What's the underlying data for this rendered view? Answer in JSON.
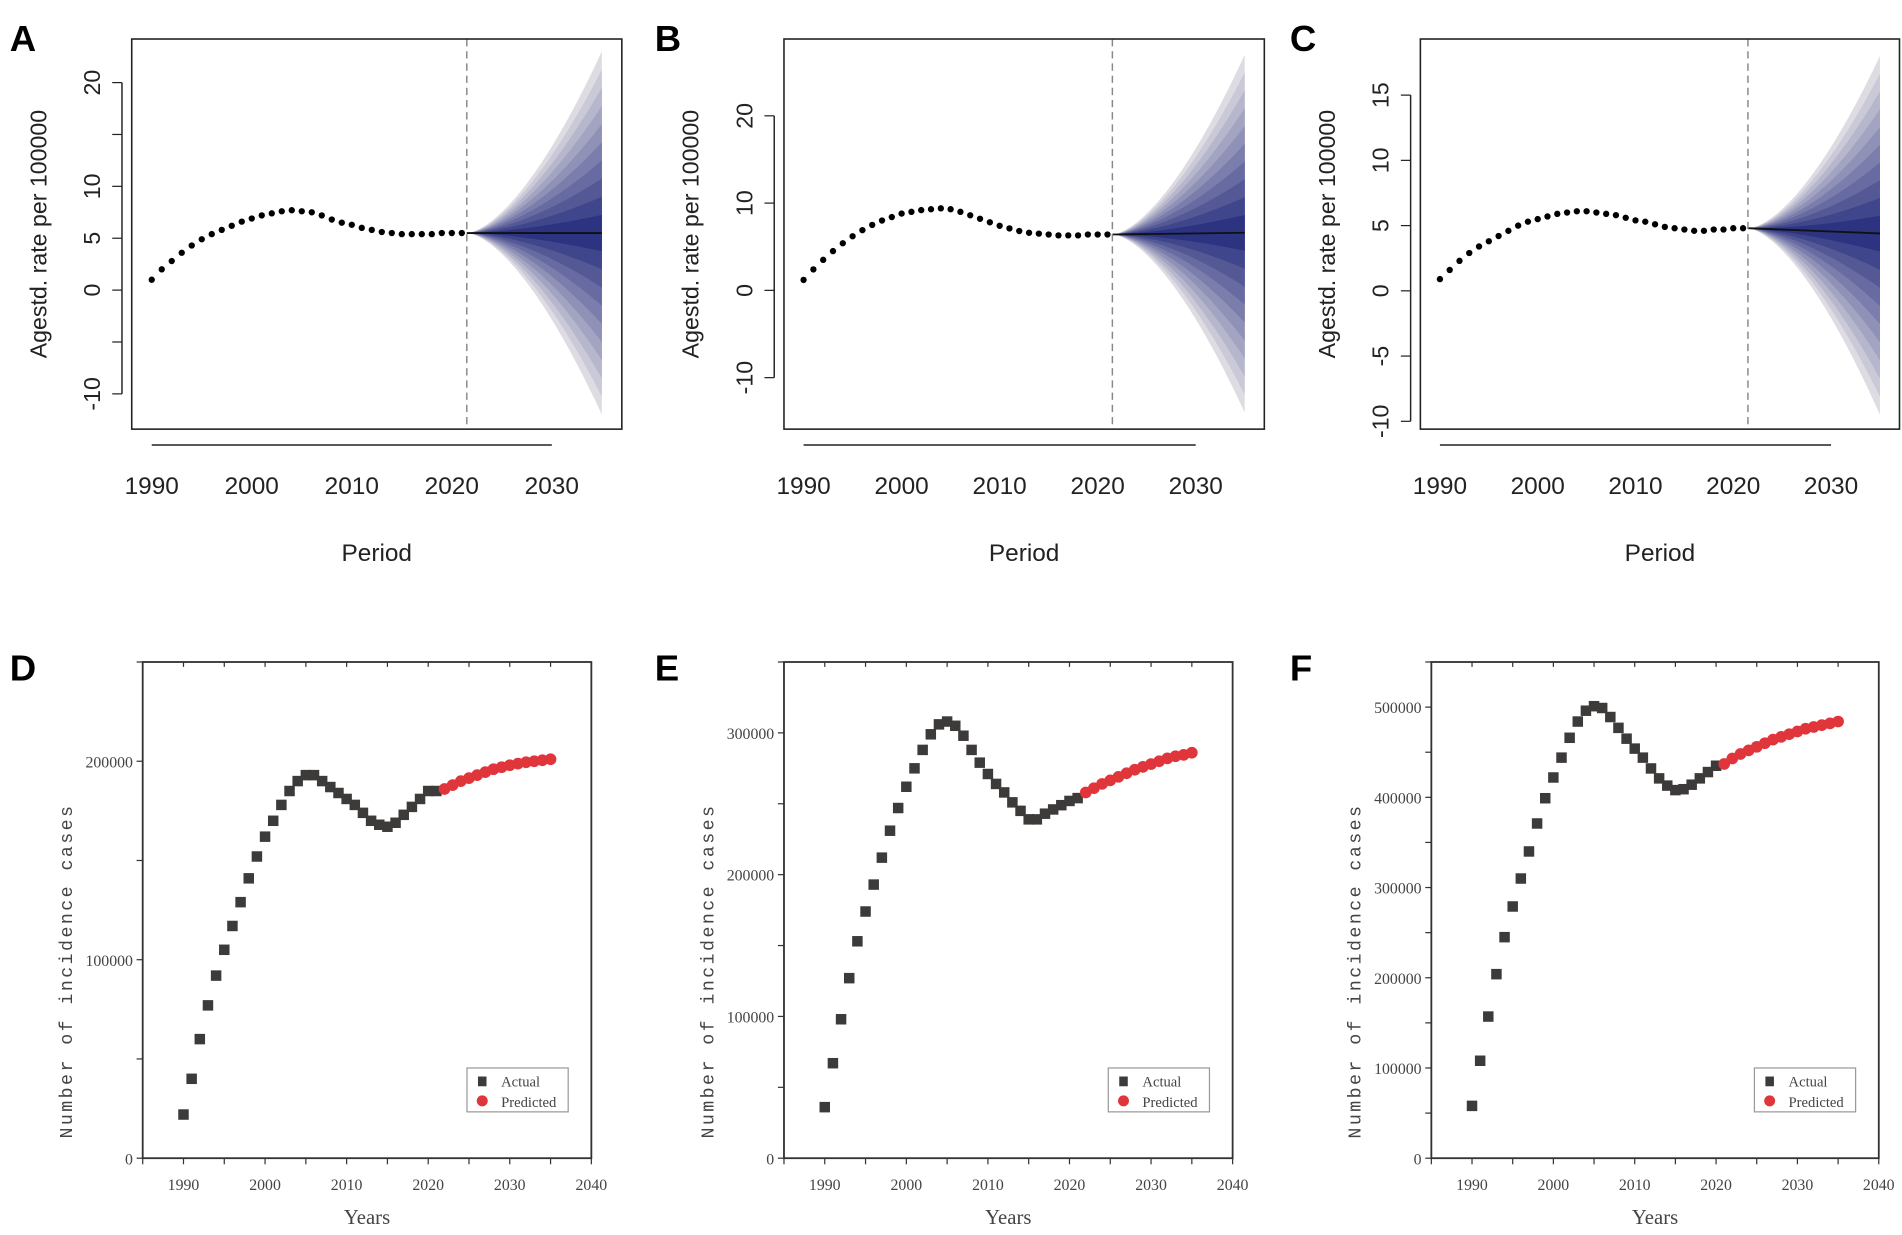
{
  "chart_data": [
    {
      "panel": "A",
      "type": "scatter",
      "style": "fan",
      "xlabel": "Period",
      "ylabel": "Agestd. rate per 100000",
      "xlim": [
        1988,
        2037
      ],
      "ylim": [
        -13.4,
        24.2
      ],
      "xticks": [
        1990,
        2000,
        2010,
        2020,
        2030
      ],
      "yticks": [
        -10,
        -5,
        0,
        5,
        10,
        15,
        20
      ],
      "ytick_labels": [
        "-10",
        "",
        "0",
        "5",
        "10",
        "",
        "20"
      ],
      "projection_start": 2021.5,
      "observed": {
        "x_start": 1990,
        "values": [
          1.0,
          2.0,
          2.8,
          3.6,
          4.3,
          4.9,
          5.4,
          5.8,
          6.2,
          6.6,
          6.9,
          7.2,
          7.4,
          7.6,
          7.7,
          7.6,
          7.5,
          7.2,
          6.8,
          6.5,
          6.3,
          6.0,
          5.8,
          5.6,
          5.5,
          5.4,
          5.4,
          5.4,
          5.4,
          5.5,
          5.5,
          5.5
        ]
      },
      "forecast": {
        "x_start": 2021.5,
        "x_end": 2035,
        "mean_start": 5.5,
        "mean_end": 5.5,
        "upper_end": 23.0,
        "lower_end": -12.0,
        "bands": 10
      }
    },
    {
      "panel": "B",
      "type": "scatter",
      "style": "fan",
      "xlabel": "Period",
      "ylabel": "Agestd. rate per 100000",
      "xlim": [
        1988,
        2037
      ],
      "ylim": [
        -15.9,
        28.8
      ],
      "xticks": [
        1990,
        2000,
        2010,
        2020,
        2030
      ],
      "yticks": [
        -10,
        0,
        10,
        20
      ],
      "ytick_labels": [
        "-10",
        "0",
        "10",
        "20"
      ],
      "projection_start": 2021.5,
      "observed": {
        "x_start": 1990,
        "values": [
          1.2,
          2.4,
          3.5,
          4.5,
          5.4,
          6.2,
          6.9,
          7.5,
          8.0,
          8.4,
          8.8,
          9.0,
          9.2,
          9.3,
          9.4,
          9.3,
          9.0,
          8.6,
          8.2,
          7.8,
          7.4,
          7.1,
          6.8,
          6.6,
          6.5,
          6.4,
          6.3,
          6.3,
          6.3,
          6.4,
          6.4,
          6.4
        ]
      },
      "forecast": {
        "x_start": 2021.5,
        "x_end": 2035,
        "mean_start": 6.4,
        "mean_end": 6.6,
        "upper_end": 27.0,
        "lower_end": -14.0,
        "bands": 10
      }
    },
    {
      "panel": "C",
      "type": "scatter",
      "style": "fan",
      "xlabel": "Period",
      "ylabel": "Agestd. rate per 100000",
      "xlim": [
        1988,
        2037
      ],
      "ylim": [
        -10.6,
        19.3
      ],
      "xticks": [
        1990,
        2000,
        2010,
        2020,
        2030
      ],
      "yticks": [
        -10,
        -5,
        0,
        5,
        10,
        15
      ],
      "ytick_labels": [
        "-10",
        "-5",
        "0",
        "5",
        "10",
        "15"
      ],
      "projection_start": 2021.5,
      "observed": {
        "x_start": 1990,
        "values": [
          0.9,
          1.6,
          2.3,
          2.9,
          3.4,
          3.8,
          4.2,
          4.6,
          5.0,
          5.3,
          5.5,
          5.7,
          5.9,
          6.0,
          6.1,
          6.1,
          6.0,
          5.9,
          5.8,
          5.6,
          5.4,
          5.3,
          5.1,
          4.9,
          4.8,
          4.7,
          4.6,
          4.6,
          4.7,
          4.7,
          4.8,
          4.8
        ]
      },
      "forecast": {
        "x_start": 2021.5,
        "x_end": 2035,
        "mean_start": 4.8,
        "mean_end": 4.4,
        "upper_end": 18.0,
        "lower_end": -9.5,
        "bands": 10
      }
    },
    {
      "panel": "D",
      "type": "scatter",
      "xlabel": "Years",
      "ylabel": "Number of incidence cases",
      "xlim": [
        1985,
        2040
      ],
      "ylim": [
        0,
        250000
      ],
      "xticks": [
        1990,
        2000,
        2010,
        2020,
        2030,
        2040
      ],
      "yticks": [
        0,
        50000,
        100000,
        150000,
        200000,
        250000
      ],
      "ytick_labels": [
        "0",
        "",
        "100000",
        "",
        "200000",
        ""
      ],
      "legend": {
        "position": "bottom-right",
        "entries": [
          "Actual",
          "Predicted"
        ]
      },
      "series": [
        {
          "name": "Actual",
          "x_start": 1990,
          "values": [
            22000,
            40000,
            60000,
            77000,
            92000,
            105000,
            117000,
            129000,
            141000,
            152000,
            162000,
            170000,
            178000,
            185000,
            190000,
            193000,
            193000,
            190000,
            187000,
            184000,
            181000,
            178000,
            174000,
            170000,
            168000,
            167000,
            169000,
            173000,
            177000,
            181000,
            185000,
            185000
          ]
        },
        {
          "name": "Predicted",
          "x_start": 2022,
          "values": [
            186000,
            188000,
            190000,
            191500,
            193000,
            194500,
            196000,
            197000,
            198000,
            198800,
            199500,
            200000,
            200500,
            201000
          ]
        }
      ]
    },
    {
      "panel": "E",
      "type": "scatter",
      "xlabel": "Years",
      "ylabel": "Number of incidence cases",
      "xlim": [
        1985,
        2040
      ],
      "ylim": [
        0,
        350000
      ],
      "xticks": [
        1990,
        2000,
        2010,
        2020,
        2030,
        2040
      ],
      "yticks": [
        0,
        50000,
        100000,
        150000,
        200000,
        250000,
        300000,
        350000
      ],
      "ytick_labels": [
        "0",
        "",
        "100000",
        "",
        "200000",
        "",
        "300000",
        ""
      ],
      "legend": {
        "position": "bottom-right",
        "entries": [
          "Actual",
          "Predicted"
        ]
      },
      "series": [
        {
          "name": "Actual",
          "x_start": 1990,
          "values": [
            36000,
            67000,
            98000,
            127000,
            153000,
            174000,
            193000,
            212000,
            231000,
            247000,
            262000,
            275000,
            288000,
            299000,
            306000,
            308000,
            305000,
            298000,
            288000,
            279000,
            271000,
            264000,
            258000,
            251000,
            245000,
            239000,
            239000,
            243000,
            246000,
            249000,
            252000,
            254000
          ]
        },
        {
          "name": "Predicted",
          "x_start": 2022,
          "values": [
            258000,
            261000,
            264000,
            266500,
            269000,
            271500,
            274000,
            276000,
            278000,
            280000,
            282000,
            283500,
            284500,
            286000
          ]
        }
      ]
    },
    {
      "panel": "F",
      "type": "scatter",
      "xlabel": "Years",
      "ylabel": "Number of incidence cases",
      "xlim": [
        1985,
        2040
      ],
      "ylim": [
        0,
        550000
      ],
      "xticks": [
        1990,
        2000,
        2010,
        2020,
        2030,
        2040
      ],
      "yticks": [
        0,
        50000,
        100000,
        150000,
        200000,
        250000,
        300000,
        350000,
        400000,
        450000,
        500000,
        550000
      ],
      "ytick_labels": [
        "0",
        "",
        "100000",
        "",
        "200000",
        "",
        "300000",
        "",
        "400000",
        "",
        "500000",
        ""
      ],
      "legend": {
        "position": "bottom-right",
        "entries": [
          "Actual",
          "Predicted"
        ]
      },
      "series": [
        {
          "name": "Actual",
          "x_start": 1990,
          "values": [
            58000,
            108000,
            157000,
            204000,
            245000,
            279000,
            310000,
            340000,
            371000,
            399000,
            422000,
            444000,
            466000,
            484000,
            496000,
            501000,
            499000,
            489000,
            477000,
            465000,
            454000,
            444000,
            432000,
            421000,
            413000,
            408000,
            409000,
            414000,
            421000,
            428000,
            435000
          ]
        },
        {
          "name": "Predicted",
          "x_start": 2021,
          "values": [
            437000,
            443000,
            448000,
            452000,
            456000,
            460000,
            464000,
            467000,
            470000,
            473000,
            476000,
            478000,
            480000,
            482000,
            484000
          ]
        }
      ]
    }
  ],
  "colors": {
    "actual": "#3d3a3a",
    "predicted": "#e0353b",
    "fan_inner": "#2c3380",
    "fan_outer": "#dedce2",
    "dots": "#000000"
  }
}
